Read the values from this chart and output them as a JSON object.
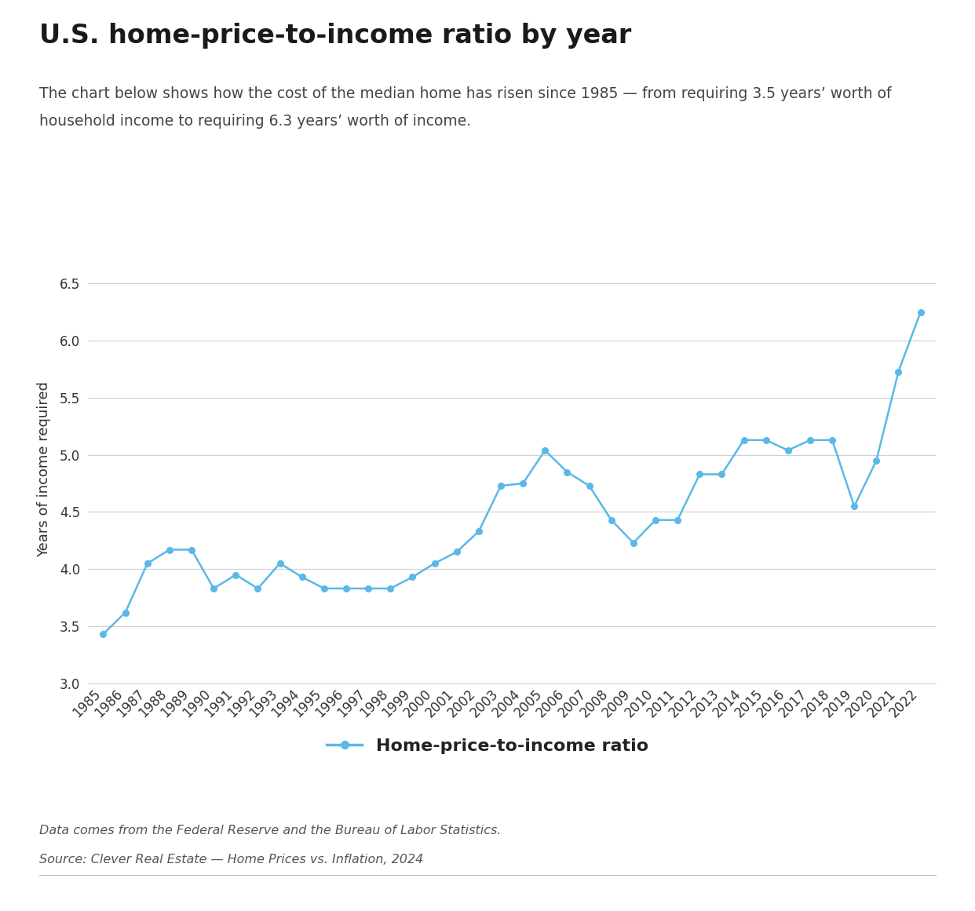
{
  "title": "U.S. home-price-to-income ratio by year",
  "subtitle_line1": "The chart below shows how the cost of the median home has risen since 1985 — from requiring 3.5 years’ worth of",
  "subtitle_line2": "household income to requiring 6.3 years’ worth of income.",
  "ylabel": "Years of income required",
  "legend_label": "Home-price-to-income ratio",
  "footnote1": "Data comes from the Federal Reserve and the Bureau of Labor Statistics.",
  "footnote2": "Source: Clever Real Estate — Home Prices vs. Inflation, 2024",
  "years": [
    1985,
    1986,
    1987,
    1988,
    1989,
    1990,
    1991,
    1992,
    1993,
    1994,
    1995,
    1996,
    1997,
    1998,
    1999,
    2000,
    2001,
    2002,
    2003,
    2004,
    2005,
    2006,
    2007,
    2008,
    2009,
    2010,
    2011,
    2012,
    2013,
    2014,
    2015,
    2016,
    2017,
    2018,
    2019,
    2020,
    2021,
    2022
  ],
  "values": [
    3.43,
    3.62,
    4.05,
    4.17,
    4.17,
    3.83,
    3.95,
    3.83,
    4.05,
    3.93,
    3.83,
    3.83,
    3.83,
    3.83,
    3.93,
    4.05,
    4.15,
    4.33,
    4.73,
    4.75,
    5.04,
    4.85,
    4.73,
    4.43,
    4.23,
    4.43,
    4.43,
    4.83,
    4.83,
    5.13,
    5.13,
    5.04,
    5.13,
    5.13,
    4.55,
    4.95,
    5.73,
    6.25
  ],
  "line_color": "#5BB8E8",
  "marker_color": "#5BB8E8",
  "ylim_min": 3.0,
  "ylim_max": 6.75,
  "yticks": [
    3.0,
    3.5,
    4.0,
    4.5,
    5.0,
    5.5,
    6.0,
    6.5
  ],
  "background_color": "#ffffff",
  "grid_color": "#d0d0d0",
  "title_fontsize": 24,
  "subtitle_fontsize": 13.5,
  "ylabel_fontsize": 13,
  "tick_fontsize": 12,
  "legend_fontsize": 16,
  "footnote_fontsize": 11.5,
  "text_color": "#333333",
  "footnote_color": "#555555"
}
